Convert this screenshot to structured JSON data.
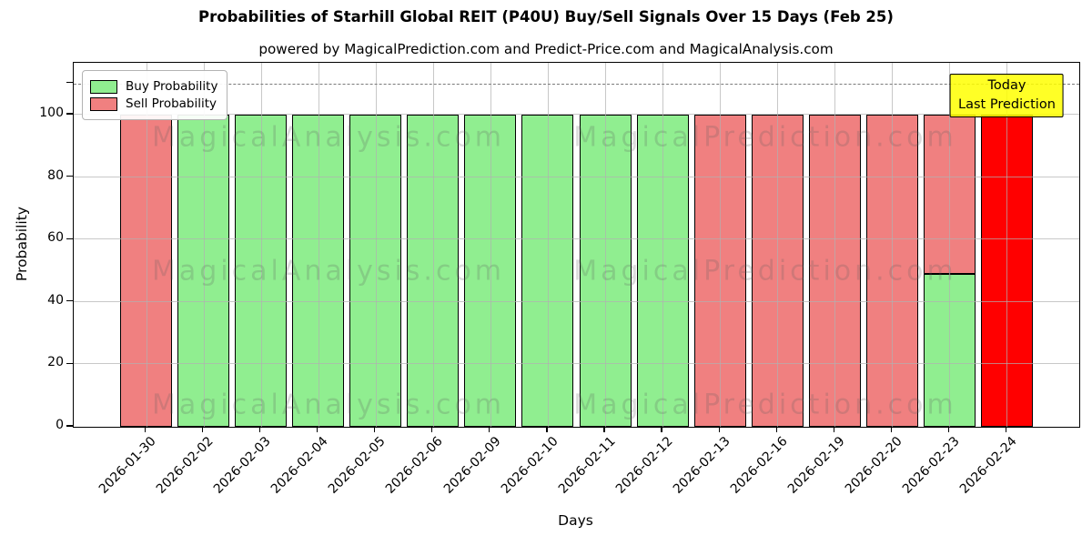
{
  "chart_data": {
    "type": "bar",
    "title": "Probabilities of Starhill Global REIT (P40U) Buy/Sell Signals Over 15 Days (Feb 25)",
    "subtitle": "powered by MagicalPrediction.com and Predict-Price.com and MagicalAnalysis.com",
    "xlabel": "Days",
    "ylabel": "Probability",
    "ylim": [
      0,
      116.6
    ],
    "yticks": [
      0,
      20,
      40,
      60,
      80,
      100
    ],
    "grid": true,
    "threshold_line_y": 110,
    "legend_position": "upper-left",
    "legend": [
      {
        "label": "Buy Probability",
        "color": "#90ee90"
      },
      {
        "label": "Sell Probability",
        "color": "#f08080"
      }
    ],
    "annotation": {
      "line1": "Today",
      "line2": "Last Prediction",
      "bg_color": "#ffff00"
    },
    "watermarks": {
      "left": "MagicalAnalysis.com",
      "right": "MagicalPrediction.com"
    },
    "colors": {
      "buy": "#90ee90",
      "sell": "#f08080",
      "today": "#ff0000",
      "edge": "#000000"
    },
    "categories": [
      "2026-01-30",
      "2026-02-02",
      "2026-02-03",
      "2026-02-04",
      "2026-02-05",
      "2026-02-06",
      "2026-02-09",
      "2026-02-10",
      "2026-02-11",
      "2026-02-12",
      "2026-02-13",
      "2026-02-16",
      "2026-02-19",
      "2026-02-20",
      "2026-02-23",
      "2026-02-24"
    ],
    "series": [
      {
        "name": "Buy Probability",
        "color": "#90ee90",
        "values": [
          0,
          100,
          100,
          100,
          100,
          100,
          100,
          100,
          100,
          100,
          0,
          0,
          0,
          0,
          49,
          0
        ]
      },
      {
        "name": "Sell Probability",
        "color": "#f08080",
        "values": [
          100,
          0,
          0,
          0,
          0,
          0,
          0,
          0,
          0,
          0,
          100,
          100,
          100,
          100,
          51,
          0
        ]
      },
      {
        "name": "Today Last Prediction",
        "color": "#ff0000",
        "values": [
          0,
          0,
          0,
          0,
          0,
          0,
          0,
          0,
          0,
          0,
          0,
          0,
          0,
          0,
          0,
          100
        ]
      }
    ]
  }
}
